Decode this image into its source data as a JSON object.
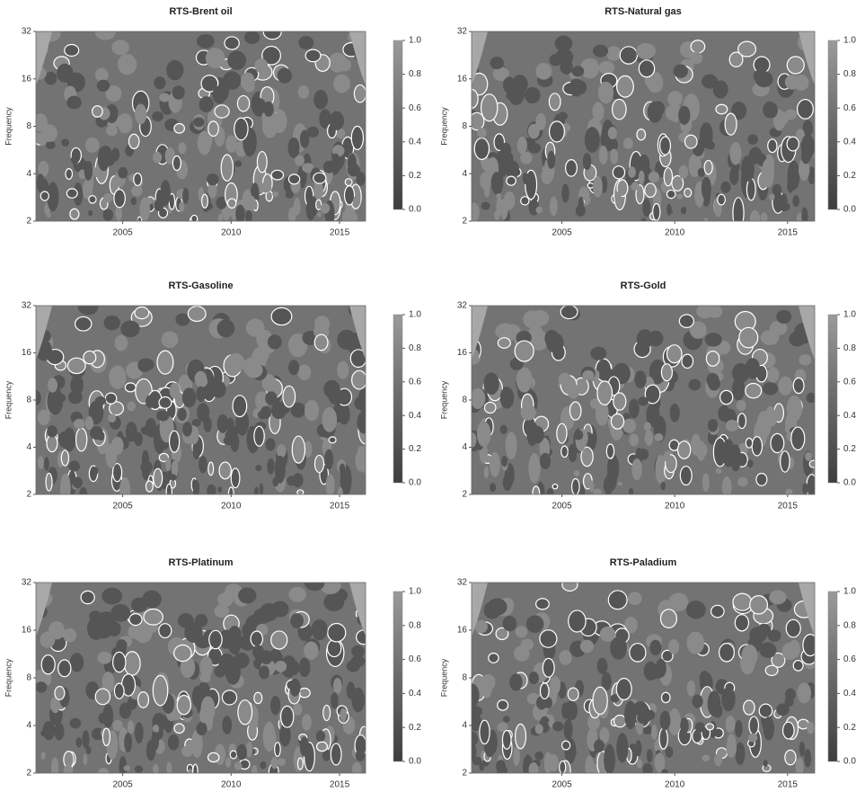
{
  "chart_data": [
    {
      "type": "heatmap",
      "title": "RTS-Brent oil",
      "y_label": "Frequency",
      "xlim": [
        2001,
        2016.2
      ],
      "xticks": [
        2005,
        2010,
        2015
      ],
      "ylim": [
        2,
        32
      ],
      "yticks": [
        2,
        4,
        8,
        16,
        32
      ],
      "log_y": true,
      "clim": [
        0,
        1
      ],
      "cticks": [
        {
          "value": 0,
          "label": "0.0"
        },
        0.2,
        0.4,
        0.6,
        0.8,
        {
          "value": 1,
          "label": "1.0"
        }
      ]
    },
    {
      "type": "heatmap",
      "title": "RTS-Natural gas",
      "y_label": "Frequency",
      "xlim": [
        2001,
        2016.2
      ],
      "xticks": [
        2005,
        2010,
        2015
      ],
      "ylim": [
        2,
        32
      ],
      "yticks": [
        2,
        4,
        8,
        16,
        32
      ],
      "log_y": true,
      "clim": [
        0,
        1
      ],
      "cticks": [
        {
          "value": 0,
          "label": "0.0"
        },
        0.2,
        0.4,
        0.6,
        0.8,
        {
          "value": 1,
          "label": "1.0"
        }
      ]
    },
    {
      "type": "heatmap",
      "title": "RTS-Gasoline",
      "y_label": "Frequency",
      "xlim": [
        2001,
        2016.2
      ],
      "xticks": [
        2005,
        2010,
        2015
      ],
      "ylim": [
        2,
        32
      ],
      "yticks": [
        2,
        4,
        8,
        16,
        32
      ],
      "log_y": true,
      "clim": [
        0,
        1
      ],
      "cticks": [
        {
          "value": 0,
          "label": "0.0"
        },
        0.2,
        0.4,
        0.6,
        0.8,
        {
          "value": 1,
          "label": "1.0"
        }
      ]
    },
    {
      "type": "heatmap",
      "title": "RTS-Gold",
      "y_label": "Frequency",
      "xlim": [
        2001,
        2016.2
      ],
      "xticks": [
        2005,
        2010,
        2015
      ],
      "ylim": [
        2,
        32
      ],
      "yticks": [
        2,
        4,
        8,
        16,
        32
      ],
      "log_y": true,
      "clim": [
        0,
        1
      ],
      "cticks": [
        {
          "value": 0,
          "label": "0.0"
        },
        0.2,
        0.4,
        0.6,
        0.8,
        {
          "value": 1,
          "label": "1.0"
        }
      ]
    },
    {
      "type": "heatmap",
      "title": "RTS-Platinum",
      "y_label": "Frequency",
      "xlim": [
        2001,
        2016.2
      ],
      "xticks": [
        2005,
        2010,
        2015
      ],
      "ylim": [
        2,
        32
      ],
      "yticks": [
        2,
        4,
        8,
        16,
        32
      ],
      "log_y": true,
      "clim": [
        0,
        1
      ],
      "cticks": [
        {
          "value": 0,
          "label": "0.0"
        },
        0.2,
        0.4,
        0.6,
        0.8,
        {
          "value": 1,
          "label": "1.0"
        }
      ]
    },
    {
      "type": "heatmap",
      "title": "RTS-Paladium",
      "y_label": "Frequency",
      "xlim": [
        2001,
        2016.2
      ],
      "xticks": [
        2005,
        2010,
        2015
      ],
      "ylim": [
        2,
        32
      ],
      "yticks": [
        2,
        4,
        8,
        16,
        32
      ],
      "log_y": true,
      "clim": [
        0,
        1
      ],
      "cticks": [
        {
          "value": 0,
          "label": "0.0"
        },
        0.2,
        0.4,
        0.6,
        0.8,
        {
          "value": 1,
          "label": "1.0"
        }
      ]
    }
  ]
}
